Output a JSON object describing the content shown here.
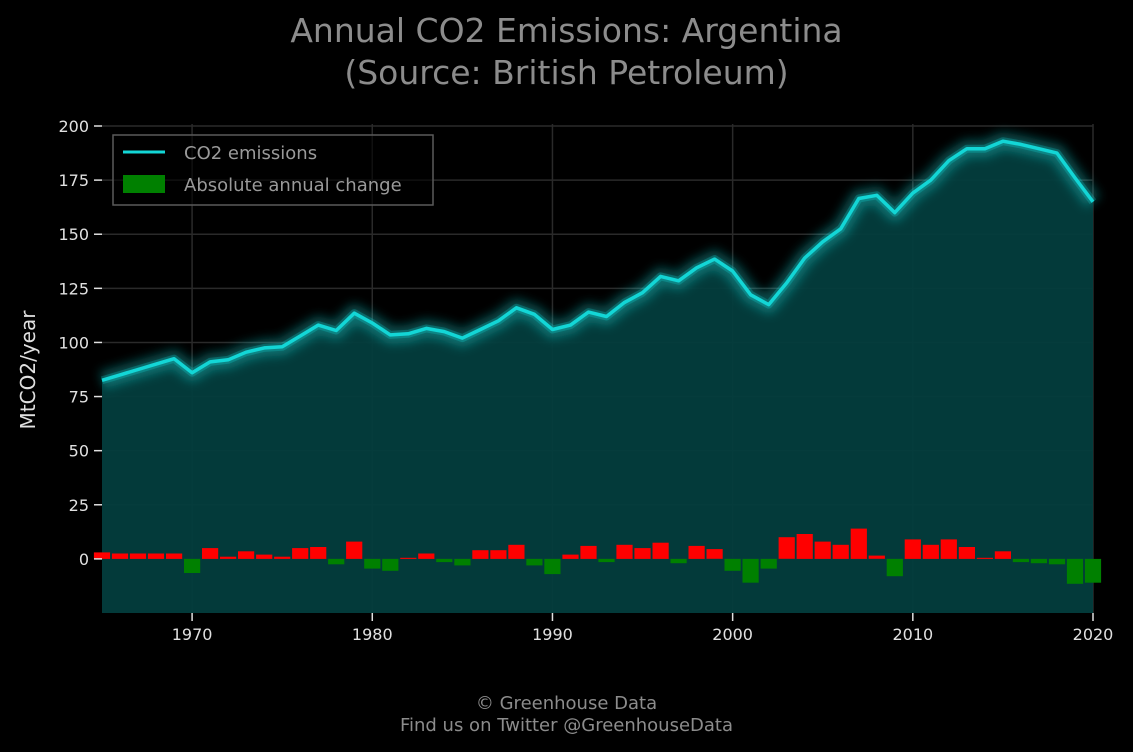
{
  "title_line1": "Annual CO2 Emissions: Argentina",
  "title_line2": "(Source: British Petroleum)",
  "footer_line1": "© Greenhouse Data",
  "footer_line2": "Find us on Twitter @GreenhouseData",
  "colors": {
    "background": "#000000",
    "line": "#13d6d6",
    "area": "#033d3d",
    "positive_bar": "#ff0000",
    "negative_bar": "#008000",
    "grid": "#2a2a2a"
  },
  "chart_data": {
    "type": "line",
    "ylabel": "MtCO2/year",
    "xlim": [
      1965,
      2020
    ],
    "ylim": [
      -25,
      200
    ],
    "xticks": [
      1970,
      1980,
      1990,
      2000,
      2010,
      2020
    ],
    "yticks": [
      0,
      25,
      50,
      75,
      100,
      125,
      150,
      175,
      200
    ],
    "grid": true,
    "legend_placement": "top-left",
    "x": [
      1965,
      1966,
      1967,
      1968,
      1969,
      1970,
      1971,
      1972,
      1973,
      1974,
      1975,
      1976,
      1977,
      1978,
      1979,
      1980,
      1981,
      1982,
      1983,
      1984,
      1985,
      1986,
      1987,
      1988,
      1989,
      1990,
      1991,
      1992,
      1993,
      1994,
      1995,
      1996,
      1997,
      1998,
      1999,
      2000,
      2001,
      2002,
      2003,
      2004,
      2005,
      2006,
      2007,
      2008,
      2009,
      2010,
      2011,
      2012,
      2013,
      2014,
      2015,
      2016,
      2017,
      2018,
      2019,
      2020
    ],
    "series": [
      {
        "name": "CO2 emissions",
        "type": "line",
        "values": [
          82.5,
          85.0,
          87.5,
          90.0,
          92.5,
          86.0,
          91.0,
          92.0,
          95.5,
          97.5,
          98.0,
          103.0,
          108.0,
          105.5,
          113.5,
          109.0,
          103.5,
          104.0,
          106.5,
          105.0,
          102.0,
          106.0,
          110.0,
          116.0,
          113.0,
          106.0,
          108.0,
          114.0,
          112.0,
          118.5,
          123.0,
          130.5,
          128.5,
          134.5,
          138.5,
          133.0,
          122.0,
          117.5,
          127.5,
          139.0,
          146.5,
          152.5,
          166.5,
          168.0,
          160.0,
          169.0,
          175.0,
          184.0,
          189.5,
          189.5,
          193.0,
          191.5,
          189.5,
          187.5,
          176.0,
          165.0
        ]
      },
      {
        "name": "Absolute annual change",
        "type": "bar",
        "values": [
          3.0,
          2.5,
          2.5,
          2.5,
          2.5,
          -6.5,
          5.0,
          1.0,
          3.5,
          2.0,
          1.0,
          5.0,
          5.5,
          -2.5,
          8.0,
          -4.5,
          -5.5,
          0.5,
          2.5,
          -1.5,
          -3.0,
          4.0,
          4.0,
          6.5,
          -3.0,
          -7.0,
          2.0,
          6.0,
          -1.5,
          6.5,
          5.0,
          7.5,
          -2.0,
          6.0,
          4.5,
          -5.5,
          -11.0,
          -4.5,
          10.0,
          11.5,
          8.0,
          6.5,
          14.0,
          1.5,
          -8.0,
          9.0,
          6.5,
          9.0,
          5.5,
          0.5,
          3.5,
          -1.5,
          -2.0,
          -2.5,
          -11.5,
          -11.0
        ]
      }
    ]
  }
}
